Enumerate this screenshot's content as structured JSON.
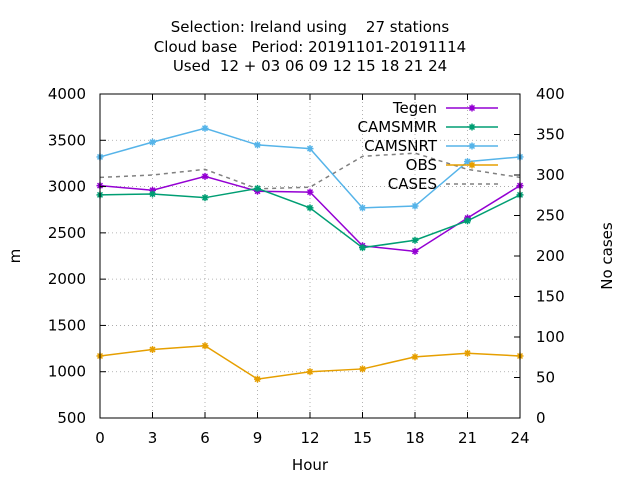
{
  "title_lines": [
    "Selection: Ireland using    27 stations",
    "Cloud base   Period: 20191101-20191114",
    "Used  12 + 03 06 09 12 15 18 21 24"
  ],
  "chart_data": {
    "type": "line",
    "xlabel": "Hour",
    "ylabel": "m",
    "y2label": "No cases",
    "x": [
      0,
      3,
      6,
      9,
      12,
      15,
      18,
      21,
      24
    ],
    "xlim": [
      0,
      24
    ],
    "ylim": [
      500,
      4000
    ],
    "y2lim": [
      0,
      400
    ],
    "xticks": [
      0,
      3,
      6,
      9,
      12,
      15,
      18,
      21,
      24
    ],
    "yticks": [
      500,
      1000,
      1500,
      2000,
      2500,
      3000,
      3500,
      4000
    ],
    "y2ticks": [
      0,
      50,
      100,
      150,
      200,
      250,
      300,
      350,
      400
    ],
    "grid": true,
    "legend_position": "top-right",
    "series": [
      {
        "name": "Tegen",
        "color": "#9400d3",
        "axis": "y",
        "style": "line-points",
        "values": [
          3010,
          2960,
          3110,
          2950,
          2940,
          2360,
          2300,
          2660,
          3010
        ]
      },
      {
        "name": "CAMSMMR",
        "color": "#009e73",
        "axis": "y",
        "style": "line-points",
        "values": [
          2910,
          2920,
          2880,
          2980,
          2770,
          2340,
          2420,
          2630,
          2910
        ]
      },
      {
        "name": "CAMSNRT",
        "color": "#56b4e9",
        "axis": "y",
        "style": "line-points",
        "values": [
          3320,
          3480,
          3630,
          3450,
          3410,
          2770,
          2790,
          3270,
          3320
        ]
      },
      {
        "name": "OBS",
        "color": "#e69f00",
        "axis": "y",
        "style": "line-points",
        "values": [
          1170,
          1240,
          1280,
          920,
          1000,
          1030,
          1160,
          1200,
          1170
        ]
      },
      {
        "name": "CASES",
        "color": "#808080",
        "axis": "y2",
        "style": "dashed",
        "values": [
          297,
          300,
          307,
          283,
          285,
          323,
          327,
          307,
          297
        ]
      }
    ]
  }
}
